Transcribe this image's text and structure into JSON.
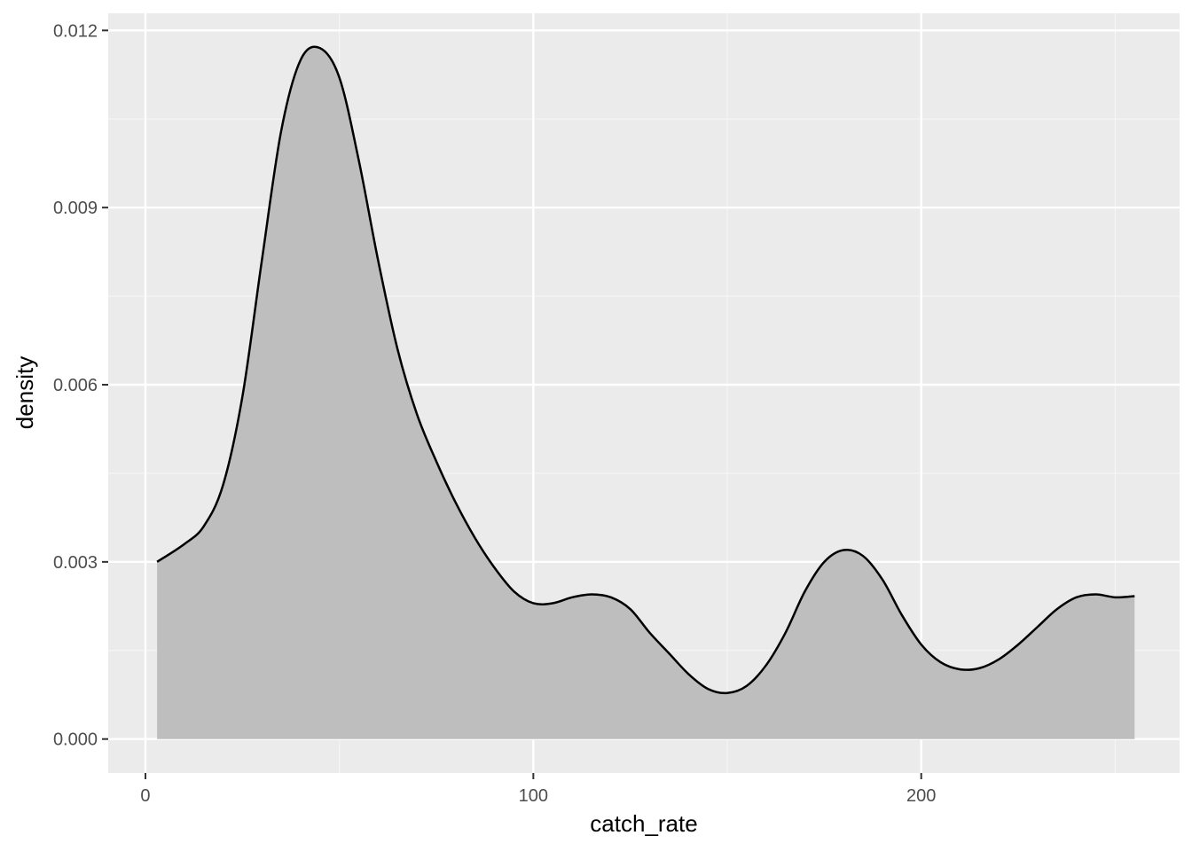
{
  "chart_data": {
    "type": "area",
    "title": "",
    "xlabel": "catch_rate",
    "ylabel": "density",
    "xlim": [
      -9.6,
      266.6
    ],
    "ylim": [
      -0.000575,
      0.01229
    ],
    "x_ticks": [
      0,
      100,
      200
    ],
    "x_tick_labels": [
      "0",
      "100",
      "200"
    ],
    "y_ticks": [
      0,
      0.003,
      0.006,
      0.009,
      0.012
    ],
    "y_tick_labels": [
      "0.000",
      "0.003",
      "0.006",
      "0.009",
      "0.012"
    ],
    "grid": true,
    "colors": {
      "panel_background": "#ebebeb",
      "grid_major": "#ffffff",
      "grid_minor": "#f5f5f5",
      "fill": "#bebebe",
      "line": "#000000"
    },
    "series": [
      {
        "x": [
          3,
          10,
          15,
          20,
          25,
          30,
          35,
          40,
          45,
          50,
          55,
          60,
          65,
          70,
          75,
          80,
          85,
          90,
          95,
          100,
          105,
          110,
          115,
          120,
          125,
          130,
          135,
          140,
          145,
          150,
          155,
          160,
          165,
          170,
          175,
          180,
          185,
          190,
          195,
          200,
          205,
          210,
          215,
          220,
          225,
          230,
          235,
          240,
          245,
          250,
          255
        ],
        "y": [
          0.003,
          0.0033,
          0.0036,
          0.0043,
          0.0058,
          0.0081,
          0.0103,
          0.0115,
          0.0117,
          0.0112,
          0.0098,
          0.0081,
          0.0066,
          0.0055,
          0.0047,
          0.004,
          0.0034,
          0.0029,
          0.0025,
          0.0023,
          0.0023,
          0.0024,
          0.00245,
          0.0024,
          0.0022,
          0.0018,
          0.00145,
          0.0011,
          0.00085,
          0.00078,
          0.0009,
          0.00125,
          0.0018,
          0.0025,
          0.003,
          0.0032,
          0.0031,
          0.0027,
          0.0021,
          0.0016,
          0.0013,
          0.00118,
          0.0012,
          0.00135,
          0.0016,
          0.0019,
          0.0022,
          0.0024,
          0.00245,
          0.0024,
          0.00242
        ]
      }
    ]
  }
}
